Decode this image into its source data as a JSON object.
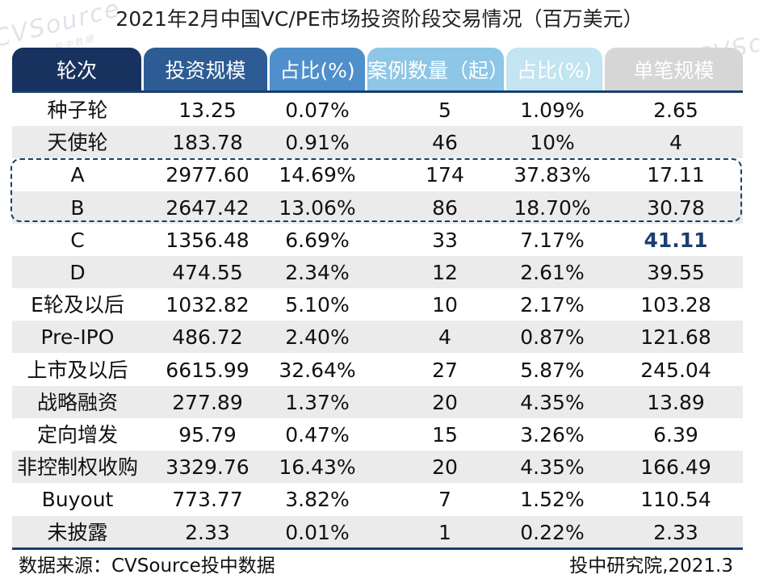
{
  "title": "2021年2月中国VC/PE市场投资阶段交易情况（百万美元）",
  "watermark": {
    "brand": "CVSource",
    "sub": "投中数据"
  },
  "colors": {
    "header_dark": "#17325e",
    "header_blue": "#2c5c93",
    "header_mid": "#4f8fcc",
    "header_light": "#8dc6e6",
    "header_pale": "#c3e4f1",
    "header_gray": "#d6d6d6",
    "highlight": "#1a3e6e"
  },
  "chart_data": {
    "type": "table",
    "columns": [
      "轮次",
      "投资规模",
      "占比(%)",
      "案例数量（起）",
      "占比(%)",
      "单笔规模"
    ],
    "rows": [
      [
        "种子轮",
        "13.25",
        "0.07%",
        "5",
        "1.09%",
        "2.65"
      ],
      [
        "天使轮",
        "183.78",
        "0.91%",
        "46",
        "10%",
        "4"
      ],
      [
        "A",
        "2977.60",
        "14.69%",
        "174",
        "37.83%",
        "17.11"
      ],
      [
        "B",
        "2647.42",
        "13.06%",
        "86",
        "18.70%",
        "30.78"
      ],
      [
        "C",
        "1356.48",
        "6.69%",
        "33",
        "7.17%",
        "41.11"
      ],
      [
        "D",
        "474.55",
        "2.34%",
        "12",
        "2.61%",
        "39.55"
      ],
      [
        "E轮及以后",
        "1032.82",
        "5.10%",
        "10",
        "2.17%",
        "103.28"
      ],
      [
        "Pre-IPO",
        "486.72",
        "2.40%",
        "4",
        "0.87%",
        "121.68"
      ],
      [
        "上市及以后",
        "6615.99",
        "32.64%",
        "27",
        "5.87%",
        "245.04"
      ],
      [
        "战略融资",
        "277.89",
        "1.37%",
        "20",
        "4.35%",
        "13.89"
      ],
      [
        "定向增发",
        "95.79",
        "0.47%",
        "15",
        "3.26%",
        "6.39"
      ],
      [
        "非控制权收购",
        "3329.76",
        "16.43%",
        "20",
        "4.35%",
        "166.49"
      ],
      [
        "Buyout",
        "773.77",
        "3.82%",
        "7",
        "1.52%",
        "110.54"
      ],
      [
        "未披露",
        "2.33",
        "0.01%",
        "1",
        "0.22%",
        "2.33"
      ]
    ],
    "highlighted_rows": [
      "A",
      "B"
    ],
    "highlighted_cell": {
      "row": "C",
      "column": "单笔规模"
    }
  },
  "footer": {
    "source": "数据来源：CVSource投中数据",
    "credit": "投中研究院,2021.3"
  }
}
